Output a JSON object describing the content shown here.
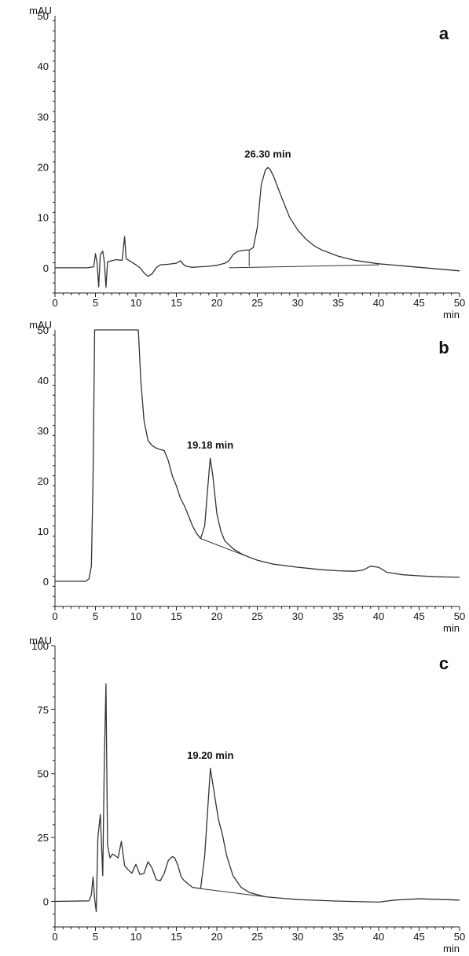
{
  "chart_data": [
    {
      "type": "line",
      "panel": "a",
      "ylabel": "mAU",
      "xlabel": "min",
      "xlim": [
        0,
        50
      ],
      "ylim": [
        -5,
        50
      ],
      "xticks": [
        0,
        5,
        10,
        15,
        20,
        25,
        30,
        35,
        40,
        45,
        50
      ],
      "yticks": [
        0,
        10,
        20,
        30,
        40,
        50
      ],
      "peak_label": "26.30 min",
      "peak_x": 26.3,
      "peak_y": 20,
      "series": [
        {
          "x": [
            0,
            4.0,
            4.8,
            5.0,
            5.2,
            5.4,
            5.6,
            5.9,
            6.1,
            6.3,
            6.5,
            7.5,
            8.3,
            8.6,
            8.8,
            9.2,
            10,
            10.5,
            11,
            11.5,
            12,
            12.5,
            13,
            14,
            15,
            15.5,
            15.8,
            16.2,
            17,
            18,
            19,
            20,
            21,
            21.5,
            22,
            22.5,
            23,
            23.5,
            24,
            24.5,
            25,
            25.5,
            26,
            26.3,
            26.6,
            27,
            28,
            29,
            30,
            31,
            32,
            33,
            35,
            37,
            40,
            45,
            50
          ],
          "values": [
            0,
            0,
            0.2,
            2.8,
            1.0,
            -3.8,
            2.6,
            3.3,
            1.2,
            -3.9,
            1.2,
            1.6,
            1.5,
            6.2,
            1.8,
            1.4,
            0.6,
            0,
            -1.0,
            -1.7,
            -1.2,
            0,
            0.6,
            0.7,
            0.9,
            1.4,
            0.8,
            0.3,
            0.1,
            0.2,
            0.3,
            0.5,
            0.9,
            1.4,
            2.6,
            3.2,
            3.4,
            3.5,
            3.5,
            4.0,
            8.0,
            16.5,
            19.4,
            19.9,
            19.5,
            18.2,
            14.0,
            10.0,
            7.5,
            5.7,
            4.4,
            3.5,
            2.3,
            1.5,
            0.8,
            0.1,
            -0.6
          ]
        }
      ],
      "baselines": [
        {
          "x": [
            21.5,
            40
          ],
          "values": [
            0,
            0.6
          ]
        }
      ],
      "drop_line": {
        "x": 24,
        "from": 0.3,
        "to": 3.5
      }
    },
    {
      "type": "line",
      "panel": "b",
      "ylabel": "mAU",
      "xlabel": "min",
      "xlim": [
        0,
        50
      ],
      "ylim": [
        -5,
        50
      ],
      "xticks": [
        0,
        5,
        10,
        15,
        20,
        25,
        30,
        35,
        40,
        45,
        50
      ],
      "yticks": [
        0,
        10,
        20,
        30,
        40,
        50
      ],
      "peak_label": "19.18 min",
      "peak_x": 19.18,
      "peak_y": 24.5,
      "series": [
        {
          "x": [
            0,
            3.0,
            3.8,
            4.2,
            4.5,
            4.7,
            4.9,
            10.3,
            10.6,
            11.0,
            11.5,
            12.0,
            12.5,
            13.0,
            13.5,
            14.0,
            14.5,
            15.0,
            15.5,
            16.0,
            16.5,
            17.0,
            17.5,
            18.0,
            18.5,
            18.8,
            19.18,
            19.5,
            20.0,
            20.5,
            21.0,
            22,
            23,
            24,
            25,
            27,
            30,
            33,
            35,
            37,
            38,
            39,
            40,
            41,
            43,
            45,
            47,
            50
          ],
          "values": [
            0,
            0,
            0,
            0.5,
            3.0,
            20.0,
            50.0,
            50.0,
            40.0,
            32.0,
            28.0,
            27.0,
            26.5,
            26.2,
            26.0,
            24.0,
            21.0,
            19.0,
            16.5,
            15.0,
            13.0,
            11.0,
            9.5,
            8.5,
            11.0,
            17.0,
            24.5,
            21.0,
            13.5,
            10.0,
            8.0,
            6.5,
            5.5,
            4.8,
            4.2,
            3.4,
            2.8,
            2.3,
            2.1,
            2.0,
            2.2,
            3.0,
            2.8,
            1.8,
            1.3,
            1.1,
            0.9,
            0.8
          ]
        }
      ],
      "baselines": [
        {
          "x": [
            18.0,
            24
          ],
          "values": [
            8.5,
            4.8
          ]
        }
      ]
    },
    {
      "type": "line",
      "panel": "c",
      "ylabel": "mAU",
      "xlabel": "min",
      "xlim": [
        0,
        50
      ],
      "ylim": [
        -10,
        100
      ],
      "xticks": [
        0,
        5,
        10,
        15,
        20,
        25,
        30,
        35,
        40,
        45,
        50
      ],
      "yticks": [
        0,
        25,
        50,
        75,
        100
      ],
      "peak_label": "19.20 min",
      "peak_x": 19.2,
      "peak_y": 52,
      "series": [
        {
          "x": [
            0,
            4.2,
            4.5,
            4.7,
            4.9,
            5.1,
            5.3,
            5.6,
            5.9,
            6.1,
            6.3,
            6.5,
            6.8,
            7.1,
            7.4,
            7.8,
            8.2,
            8.6,
            9.0,
            9.5,
            10.0,
            10.5,
            11.0,
            11.5,
            12.0,
            12.5,
            13.0,
            13.5,
            14.0,
            14.5,
            14.8,
            15.2,
            15.6,
            16.0,
            17.0,
            18.0,
            18.5,
            19.2,
            19.8,
            20.2,
            20.7,
            21.2,
            22,
            23,
            24,
            26,
            30,
            35,
            40,
            42,
            45,
            50
          ],
          "values": [
            0,
            0.2,
            2.5,
            9.5,
            1.0,
            -4.0,
            25.0,
            34.0,
            10.0,
            55.0,
            85.0,
            22.0,
            17.0,
            18.5,
            18.0,
            17.0,
            23.5,
            14.0,
            12.5,
            11.0,
            14.5,
            10.5,
            11.0,
            15.5,
            13.0,
            8.5,
            8.0,
            11.0,
            16.0,
            17.5,
            17.0,
            14.0,
            9.5,
            8.0,
            5.5,
            5.0,
            18.0,
            52.0,
            40.0,
            32.0,
            26.0,
            18.0,
            10.0,
            5.5,
            3.5,
            1.8,
            0.7,
            0.1,
            -0.3,
            0.5,
            1.0,
            0.5
          ]
        }
      ],
      "baselines": [
        {
          "x": [
            18.0,
            26
          ],
          "values": [
            5.0,
            1.8
          ]
        }
      ]
    }
  ]
}
